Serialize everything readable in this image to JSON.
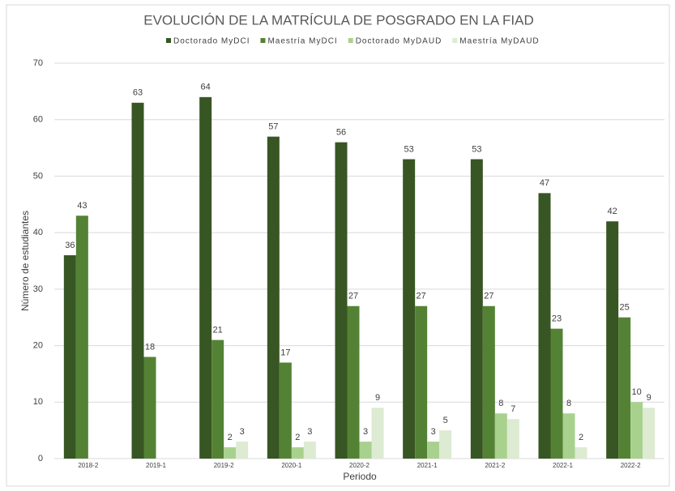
{
  "chart_data": {
    "type": "bar",
    "title": "EVOLUCIÓN DE LA MATRÍCULA DE POSGRADO EN LA FIAD",
    "x_label": "Periodo",
    "y_label": "Número de estudiantes",
    "categories": [
      "2018-2",
      "2019-1",
      "2019-2",
      "2020-1",
      "2020-2",
      "2021-1",
      "2021-2",
      "2022-1",
      "2022-2"
    ],
    "series": [
      {
        "name": "Doctorado MyDCI",
        "color": "#375623",
        "values": [
          36,
          63,
          64,
          57,
          56,
          53,
          53,
          47,
          42
        ]
      },
      {
        "name": "Maestría MyDCI",
        "color": "#548235",
        "values": [
          43,
          18,
          21,
          17,
          27,
          27,
          27,
          23,
          25
        ]
      },
      {
        "name": "Doctorado MyDAUD",
        "color": "#a9d18e",
        "values": [
          null,
          null,
          2,
          2,
          3,
          3,
          8,
          8,
          10
        ]
      },
      {
        "name": "Maestría MyDAUD",
        "color": "#dcebd2",
        "values": [
          null,
          null,
          3,
          3,
          9,
          5,
          7,
          2,
          9
        ]
      }
    ],
    "ylim": [
      0,
      70
    ],
    "yticks": [
      0,
      10,
      20,
      30,
      40,
      50,
      60,
      70
    ],
    "grid": true,
    "legend": "top"
  }
}
